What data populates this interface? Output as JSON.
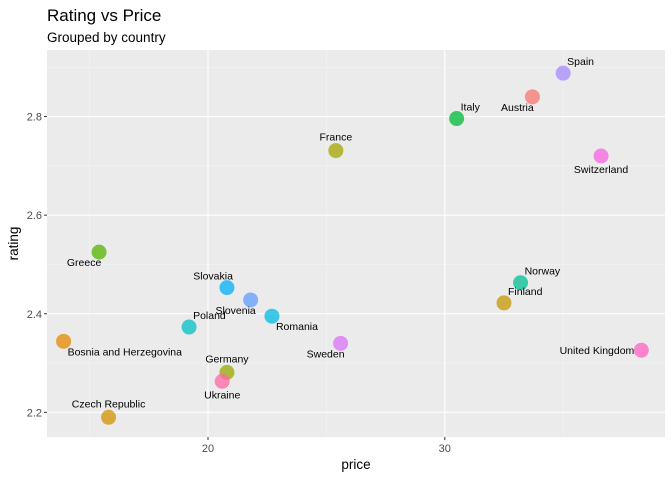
{
  "chart_data": {
    "type": "scatter",
    "title": "Rating vs Price",
    "subtitle": "Grouped by country",
    "xlabel": "price",
    "ylabel": "rating",
    "xlim": [
      13.2,
      39.3
    ],
    "ylim": [
      2.15,
      2.935
    ],
    "xticks": [
      20,
      30
    ],
    "yticks": [
      2.2,
      2.4,
      2.6,
      2.8
    ],
    "xtick_labels": [
      "20",
      "30"
    ],
    "ytick_labels": [
      "2.2",
      "2.4",
      "2.6",
      "2.8"
    ],
    "xminor": [
      15,
      25,
      35
    ],
    "yminor": [
      2.3,
      2.5,
      2.7,
      2.9
    ],
    "grid": true,
    "legend": "none",
    "points": [
      {
        "label": "Spain",
        "x": 35.0,
        "y": 2.888,
        "color": "#a58aff",
        "lpos": "ne"
      },
      {
        "label": "Austria",
        "x": 33.7,
        "y": 2.84,
        "color": "#f8766d",
        "lpos": "sw"
      },
      {
        "label": "Italy",
        "x": 30.5,
        "y": 2.796,
        "color": "#00ba38",
        "lpos": "ne"
      },
      {
        "label": "Switzerland",
        "x": 36.6,
        "y": 2.72,
        "color": "#f564e3",
        "lpos": "s"
      },
      {
        "label": "France",
        "x": 25.4,
        "y": 2.731,
        "color": "#a3a500",
        "lpos": "n"
      },
      {
        "label": "Greece",
        "x": 15.4,
        "y": 2.525,
        "color": "#53b400",
        "lpos": "sw"
      },
      {
        "label": "Norway",
        "x": 33.2,
        "y": 2.463,
        "color": "#00c094",
        "lpos": "ne"
      },
      {
        "label": "Finland",
        "x": 32.5,
        "y": 2.422,
        "color": "#c49a00",
        "lpos": "ne"
      },
      {
        "label": "Slovakia",
        "x": 20.8,
        "y": 2.453,
        "color": "#00b0f6",
        "lpos": "nw"
      },
      {
        "label": "Slovenia",
        "x": 21.8,
        "y": 2.428,
        "color": "#619cff",
        "lpos": "sw"
      },
      {
        "label": "Romania",
        "x": 22.7,
        "y": 2.395,
        "color": "#00b9e3",
        "lpos": "se"
      },
      {
        "label": "Poland",
        "x": 19.2,
        "y": 2.373,
        "color": "#00bfc4",
        "lpos": "ne"
      },
      {
        "label": "Sweden",
        "x": 25.6,
        "y": 2.34,
        "color": "#db72fb",
        "lpos": "sw"
      },
      {
        "label": "Bosnia and Herzegovina",
        "x": 13.9,
        "y": 2.344,
        "color": "#e58700",
        "lpos": "se"
      },
      {
        "label": "United Kingdom",
        "x": 38.3,
        "y": 2.326,
        "color": "#ff61c3",
        "lpos": "w"
      },
      {
        "label": "Germany",
        "x": 20.8,
        "y": 2.281,
        "color": "#99a800",
        "lpos": "n"
      },
      {
        "label": "Ukraine",
        "x": 20.6,
        "y": 2.263,
        "color": "#ff67a4",
        "lpos": "s"
      },
      {
        "label": "Czech Republic",
        "x": 15.8,
        "y": 2.19,
        "color": "#d39200",
        "lpos": "n"
      }
    ]
  }
}
